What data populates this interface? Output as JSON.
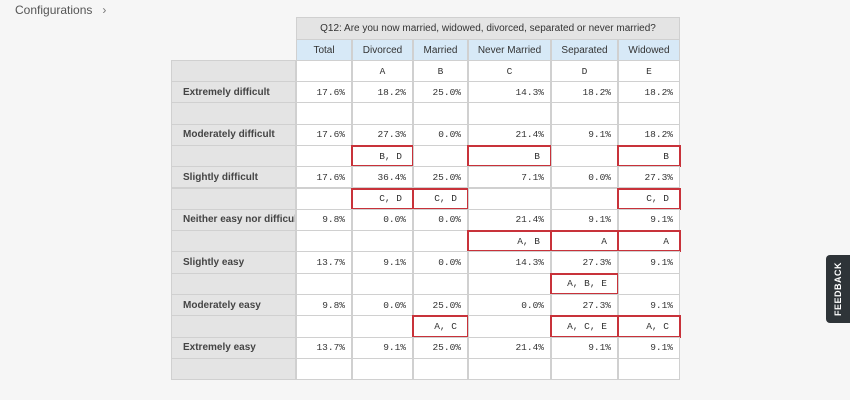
{
  "header": {
    "breadcrumb": "Configurations",
    "separator": "›"
  },
  "table": {
    "question": "Q12: Are you now married, widowed, divorced, separated or never married?",
    "columns": [
      "Total",
      "Divorced",
      "Married",
      "Never Married",
      "Separated",
      "Widowed"
    ],
    "letters": [
      null,
      "A",
      "B",
      "C",
      "D",
      "E"
    ],
    "rows": [
      {
        "label": "Extremely difficult",
        "values": [
          "17.6%",
          "18.2%",
          "25.0%",
          "14.3%",
          "18.2%",
          "18.2%"
        ],
        "significance": [
          null,
          null,
          null,
          null,
          null,
          null
        ]
      },
      {
        "label": "Moderately difficult",
        "values": [
          "17.6%",
          "27.3%",
          "0.0%",
          "21.4%",
          "9.1%",
          "18.2%"
        ],
        "significance": [
          null,
          "B, D",
          null,
          "B",
          null,
          "B"
        ]
      },
      {
        "label": "Slightly difficult",
        "values": [
          "17.6%",
          "36.4%",
          "25.0%",
          "7.1%",
          "0.0%",
          "27.3%"
        ],
        "significance": [
          null,
          "C, D",
          "C, D",
          null,
          null,
          "C, D"
        ]
      },
      {
        "label": "Neither easy nor difficult",
        "values": [
          "9.8%",
          "0.0%",
          "0.0%",
          "21.4%",
          "9.1%",
          "9.1%"
        ],
        "significance": [
          null,
          null,
          null,
          "A, B",
          "A",
          "A"
        ]
      },
      {
        "label": "Slightly easy",
        "values": [
          "13.7%",
          "9.1%",
          "0.0%",
          "14.3%",
          "27.3%",
          "9.1%"
        ],
        "significance": [
          null,
          null,
          null,
          null,
          "A, B, E",
          null
        ]
      },
      {
        "label": "Moderately easy",
        "values": [
          "9.8%",
          "0.0%",
          "25.0%",
          "0.0%",
          "27.3%",
          "9.1%"
        ],
        "significance": [
          null,
          null,
          "A, C",
          null,
          "A, C, E",
          "A, C"
        ]
      },
      {
        "label": "Extremely easy",
        "values": [
          "13.7%",
          "9.1%",
          "25.0%",
          "21.4%",
          "9.1%",
          "9.1%"
        ],
        "significance": [
          null,
          null,
          null,
          null,
          null,
          null
        ]
      }
    ]
  },
  "feedback": "FEEDBACK"
}
